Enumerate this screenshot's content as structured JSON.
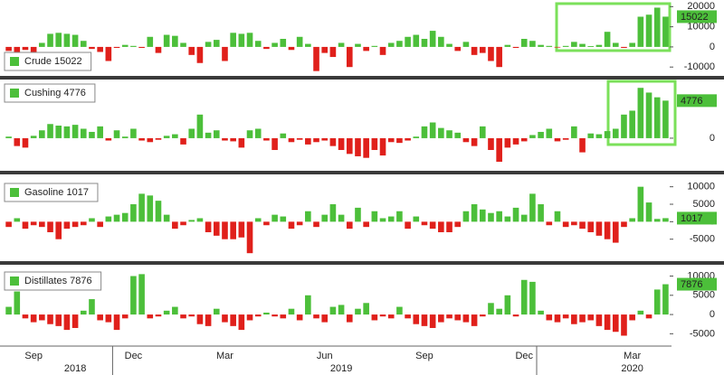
{
  "chart_data": [
    {
      "type": "bar",
      "positive_color": "#4cbf3a",
      "negative_color": "#e0201b",
      "ylim": [
        -13500,
        21500
      ],
      "yticks": [
        -10000,
        0,
        10000,
        20000
      ],
      "series": [
        {
          "name": "Crude",
          "color": "#4cbf3a",
          "values": [
            -2000,
            -2500,
            -1500,
            -3000,
            2000,
            6500,
            7000,
            6500,
            6000,
            3000,
            -1000,
            -2500,
            -7000,
            -500,
            1000,
            500,
            -500,
            5000,
            -3000,
            6000,
            5500,
            2000,
            -4000,
            -8000,
            2500,
            3500,
            -7000,
            7000,
            6500,
            7000,
            3000,
            -1000,
            2000,
            4000,
            -1500,
            5000,
            1500,
            -12000,
            -3000,
            -5000,
            2000,
            -10000,
            1500,
            -2000,
            500,
            -4000,
            2000,
            3000,
            5000,
            6000,
            4000,
            8000,
            5000,
            1500,
            -2000,
            2500,
            -4000,
            -3000,
            -7000,
            -10000,
            1000,
            -500,
            4000,
            3000,
            1000,
            500,
            -300,
            500,
            2500,
            1500,
            400,
            1000,
            7500,
            2000,
            -500,
            2000,
            15000,
            16000,
            19500,
            15022
          ]
        }
      ]
    },
    {
      "type": "bar",
      "positive_color": "#4cbf3a",
      "negative_color": "#e0201b",
      "ylim": [
        -3800,
        7000
      ],
      "yticks": [
        0
      ],
      "series": [
        {
          "name": "Cushing",
          "color": "#4cbf3a",
          "values": [
            200,
            -1000,
            -1200,
            300,
            1000,
            1800,
            1600,
            1500,
            1700,
            1200,
            800,
            1500,
            -300,
            1000,
            200,
            1200,
            -300,
            -500,
            -200,
            300,
            500,
            -800,
            1200,
            3000,
            700,
            1000,
            -300,
            -400,
            -1200,
            1000,
            1200,
            -300,
            -1500,
            600,
            -500,
            -200,
            -800,
            -500,
            -300,
            -1000,
            -1500,
            -2000,
            -2300,
            -2500,
            -1500,
            -2200,
            -500,
            -600,
            -300,
            200,
            1500,
            2000,
            1300,
            1000,
            700,
            -500,
            -1000,
            1500,
            -1500,
            -3000,
            -1200,
            -800,
            -400,
            400,
            800,
            1200,
            -400,
            -200,
            1500,
            -1800,
            600,
            500,
            900,
            1200,
            3000,
            3500,
            6400,
            5800,
            5200,
            4776
          ]
        }
      ]
    },
    {
      "type": "bar",
      "positive_color": "#4cbf3a",
      "negative_color": "#e0201b",
      "ylim": [
        -10500,
        12500
      ],
      "yticks": [
        -5000,
        0,
        5000,
        10000
      ],
      "series": [
        {
          "name": "Gasoline",
          "color": "#4cbf3a",
          "values": [
            -1500,
            1000,
            -2000,
            -1000,
            -1500,
            -3000,
            -5000,
            -2000,
            -1500,
            -1000,
            1000,
            -1500,
            1500,
            2000,
            2500,
            5000,
            8000,
            7500,
            6000,
            2000,
            -2000,
            -1000,
            500,
            1000,
            -3000,
            -4000,
            -5000,
            -5000,
            -4500,
            -9000,
            1000,
            -1000,
            2000,
            1500,
            -2000,
            -1000,
            3000,
            -1500,
            2000,
            5000,
            2000,
            -2000,
            4000,
            -1500,
            3000,
            1000,
            1500,
            3000,
            -2000,
            1500,
            -1000,
            -2000,
            -3000,
            -3000,
            -1500,
            3000,
            5000,
            3500,
            2500,
            3000,
            1500,
            4000,
            2000,
            8000,
            5000,
            -1000,
            3000,
            -1500,
            -1000,
            -2000,
            -3000,
            -4000,
            -5000,
            -6000,
            -1500,
            1000,
            10000,
            5500,
            800,
            1017
          ]
        }
      ]
    },
    {
      "type": "bar",
      "positive_color": "#4cbf3a",
      "negative_color": "#e0201b",
      "ylim": [
        -7500,
        12000
      ],
      "yticks": [
        -5000,
        0,
        5000,
        10000
      ],
      "series": [
        {
          "name": "Distillates",
          "color": "#4cbf3a",
          "values": [
            2000,
            6000,
            -1000,
            -2000,
            -1500,
            -2500,
            -3000,
            -4000,
            -3500,
            1000,
            4000,
            -1500,
            -2000,
            -4000,
            -1000,
            10000,
            10500,
            -1000,
            -500,
            1000,
            2000,
            -1000,
            -500,
            -2500,
            -3000,
            1500,
            -2000,
            -3000,
            -4000,
            -1500,
            -500,
            500,
            -500,
            -1000,
            1500,
            -1500,
            5000,
            -1000,
            -2000,
            2000,
            2500,
            -2000,
            1500,
            3000,
            -1500,
            -500,
            -1000,
            2000,
            -1000,
            -2500,
            -3000,
            -3500,
            -2000,
            -1000,
            -1500,
            -2000,
            -3000,
            -500,
            3000,
            1500,
            5000,
            -500,
            9000,
            8500,
            1000,
            -1500,
            -2000,
            -1000,
            -2500,
            -2000,
            -1500,
            -3000,
            -4000,
            -4500,
            -5500,
            -1500,
            1000,
            -1000,
            6500,
            7876
          ]
        }
      ],
      "categories": [
        null,
        null,
        null,
        "Sep",
        null,
        null,
        null,
        null,
        null,
        null,
        null,
        null,
        null,
        null,
        null,
        "Dec",
        null,
        null,
        null,
        null,
        null,
        null,
        null,
        null,
        null,
        null,
        "Mar",
        null,
        null,
        null,
        null,
        null,
        null,
        null,
        null,
        null,
        null,
        null,
        "Jun",
        null,
        null,
        null,
        null,
        null,
        null,
        null,
        null,
        null,
        null,
        null,
        "Sep",
        null,
        null,
        null,
        null,
        null,
        null,
        null,
        null,
        null,
        null,
        null,
        "Dec",
        null,
        null,
        null,
        null,
        null,
        null,
        null,
        null,
        null,
        null,
        null,
        null,
        "Mar",
        null,
        null,
        null,
        null
      ],
      "year_labels": [
        null,
        null,
        null,
        null,
        null,
        null,
        null,
        null,
        "2018",
        null,
        null,
        null,
        null,
        null,
        null,
        null,
        null,
        null,
        null,
        null,
        null,
        null,
        null,
        null,
        null,
        null,
        null,
        null,
        null,
        null,
        null,
        null,
        null,
        null,
        null,
        null,
        null,
        null,
        null,
        null,
        "2019",
        null,
        null,
        null,
        null,
        null,
        null,
        null,
        null,
        null,
        null,
        null,
        null,
        null,
        null,
        null,
        null,
        null,
        null,
        null,
        null,
        null,
        null,
        null,
        null,
        null,
        null,
        null,
        null,
        null,
        null,
        null,
        null,
        null,
        null,
        "2020",
        null,
        null,
        null,
        null
      ]
    }
  ]
}
